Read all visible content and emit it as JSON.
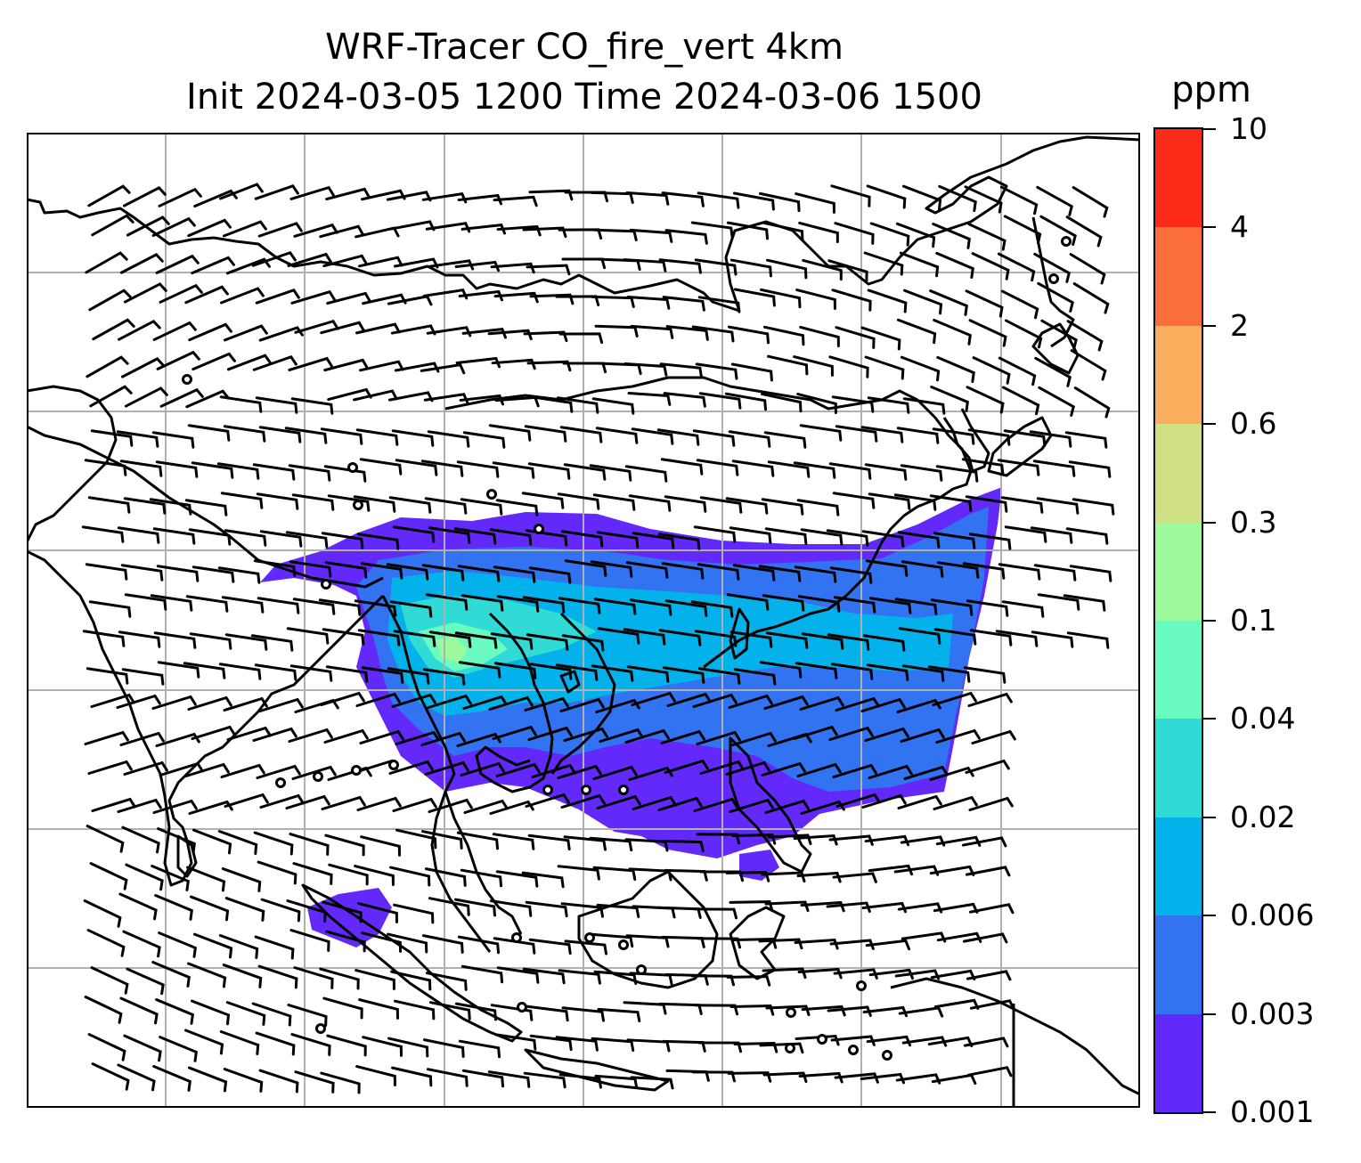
{
  "title": {
    "line1": "WRF-Tracer CO_fire_vert 4km",
    "line2": "Init 2024-03-05 1200 Time 2024-03-06 1500"
  },
  "colorbar": {
    "unit": "ppm",
    "levels": [
      "0.001",
      "0.003",
      "0.006",
      "0.02",
      "0.04",
      "0.1",
      "0.3",
      "0.6",
      "2",
      "4",
      "10"
    ],
    "colors": [
      "#6329fb",
      "#3273f1",
      "#03b2ea",
      "#30dbd6",
      "#69fbbf",
      "#9cf99c",
      "#cfe084",
      "#fbaf5e",
      "#fc6f3c",
      "#fb2b18"
    ]
  },
  "map": {
    "features": [
      "coastlines",
      "country-borders",
      "gridlines",
      "wind-barbs",
      "tracer-shading"
    ],
    "colors": {
      "coast": "#000000",
      "grid": "#b0b0b0",
      "barb": "#000000"
    }
  }
}
